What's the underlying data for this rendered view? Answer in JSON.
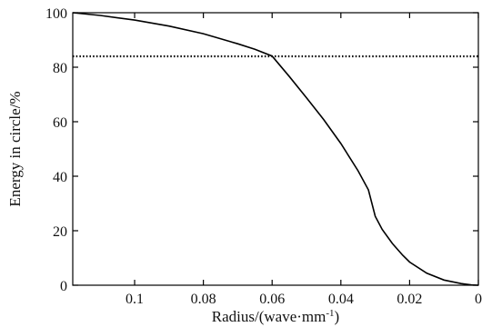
{
  "chart_data": {
    "type": "line",
    "title": "",
    "xlabel": "Radius/(wave·mm",
    "xlabel_superscript": "-1",
    "xlabel_close": ")",
    "ylabel": "Energy in circle/%",
    "xlim": [
      0.118,
      0
    ],
    "ylim": [
      0,
      100
    ],
    "x_reversed": true,
    "xticks": [
      0.1,
      0.08,
      0.06,
      0.04,
      0.02,
      0
    ],
    "xtick_labels": [
      "0.1",
      "0.08",
      "0.06",
      "0.04",
      "0.02",
      "0"
    ],
    "yticks": [
      0,
      20,
      40,
      60,
      80,
      100
    ],
    "ytick_labels": [
      "0",
      "20",
      "40",
      "60",
      "80",
      "100"
    ],
    "grid": false,
    "series": [
      {
        "style": "solid",
        "x": [
          0.118,
          0.11,
          0.1,
          0.09,
          0.08,
          0.07,
          0.065,
          0.06,
          0.055,
          0.05,
          0.045,
          0.04,
          0.035,
          0.032,
          0.03,
          0.028,
          0.025,
          0.022,
          0.02,
          0.015,
          0.01,
          0.005,
          0.002,
          0.0
        ],
        "y": [
          100,
          99,
          97.3,
          95.1,
          92.3,
          88.6,
          86.6,
          84.1,
          76.6,
          68.8,
          60.8,
          52.0,
          42.0,
          35.0,
          25.3,
          20.5,
          15.3,
          11.0,
          8.5,
          4.4,
          1.9,
          0.6,
          0.1,
          0.0
        ]
      },
      {
        "style": "dotted",
        "x": [
          0.118,
          0.0
        ],
        "y": [
          84,
          84
        ]
      }
    ]
  }
}
